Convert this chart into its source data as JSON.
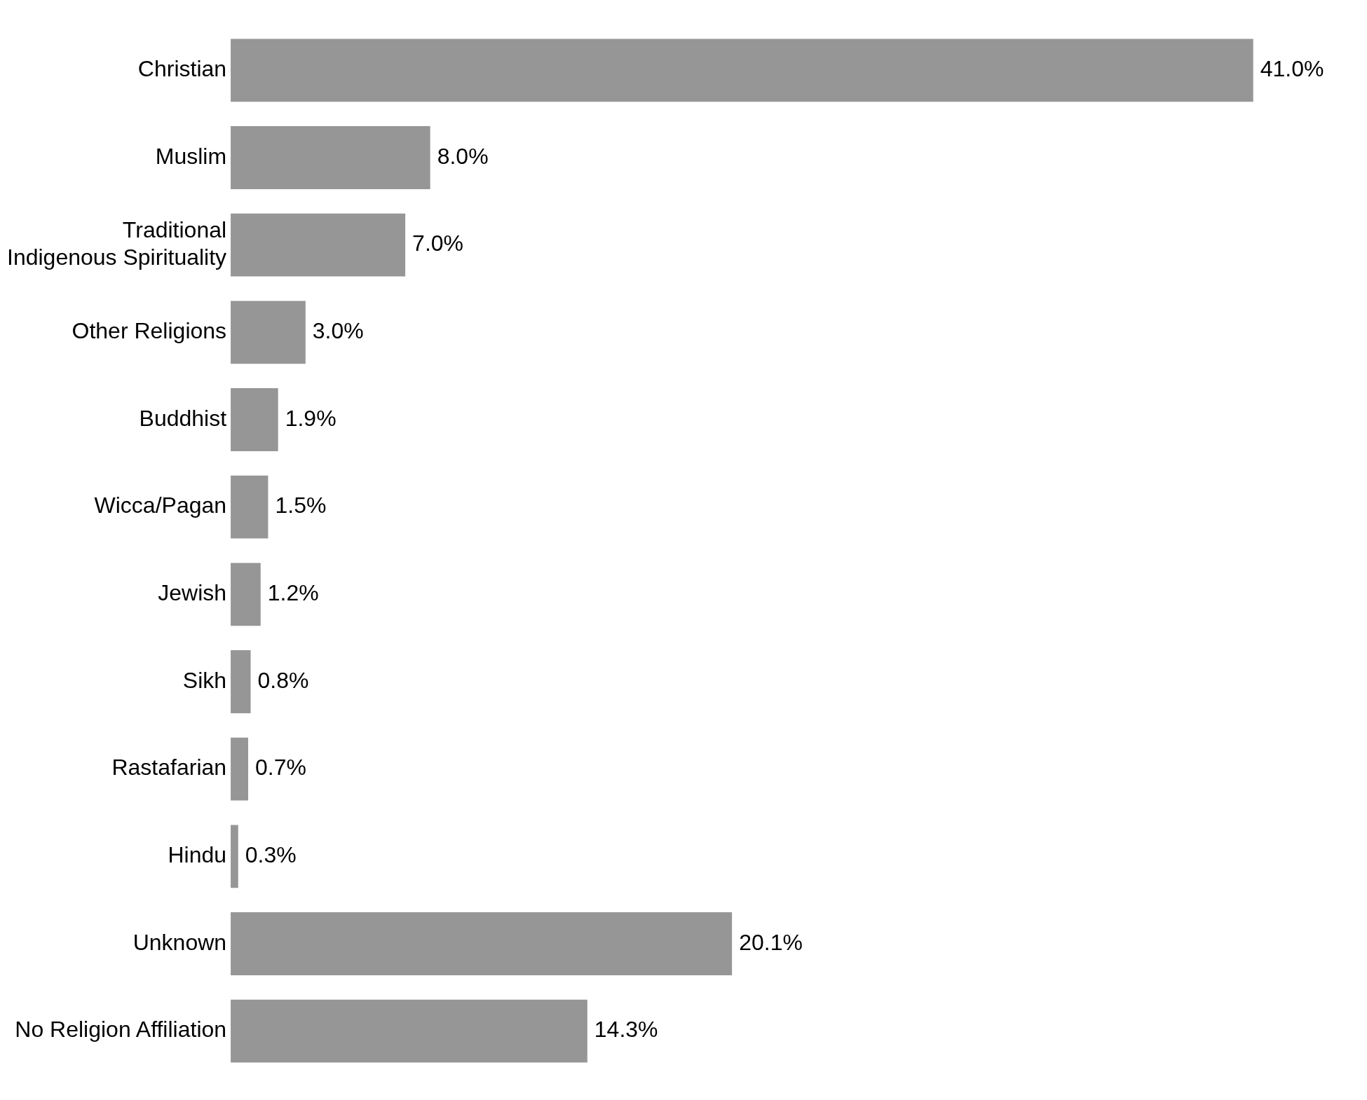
{
  "chart_data": {
    "type": "bar",
    "orientation": "horizontal",
    "categories": [
      "Christian",
      "Muslim",
      "Traditional\nIndigenous Spirituality",
      "Other Religions",
      "Buddhist",
      "Wicca/Pagan",
      "Jewish",
      "Sikh",
      "Rastafarian",
      "Hindu",
      "Unknown",
      "No Religion Affiliation"
    ],
    "values": [
      41.0,
      8.0,
      7.0,
      3.0,
      1.9,
      1.5,
      1.2,
      0.8,
      0.7,
      0.3,
      20.1,
      14.3
    ],
    "value_labels": [
      "41.0%",
      "8.0%",
      "7.0%",
      "3.0%",
      "1.9%",
      "1.5%",
      "1.2%",
      "0.8%",
      "0.7%",
      "0.3%",
      "20.1%",
      "14.3%"
    ],
    "color": "#969696",
    "tick_labels": "y",
    "grid": false,
    "legend": false
  }
}
